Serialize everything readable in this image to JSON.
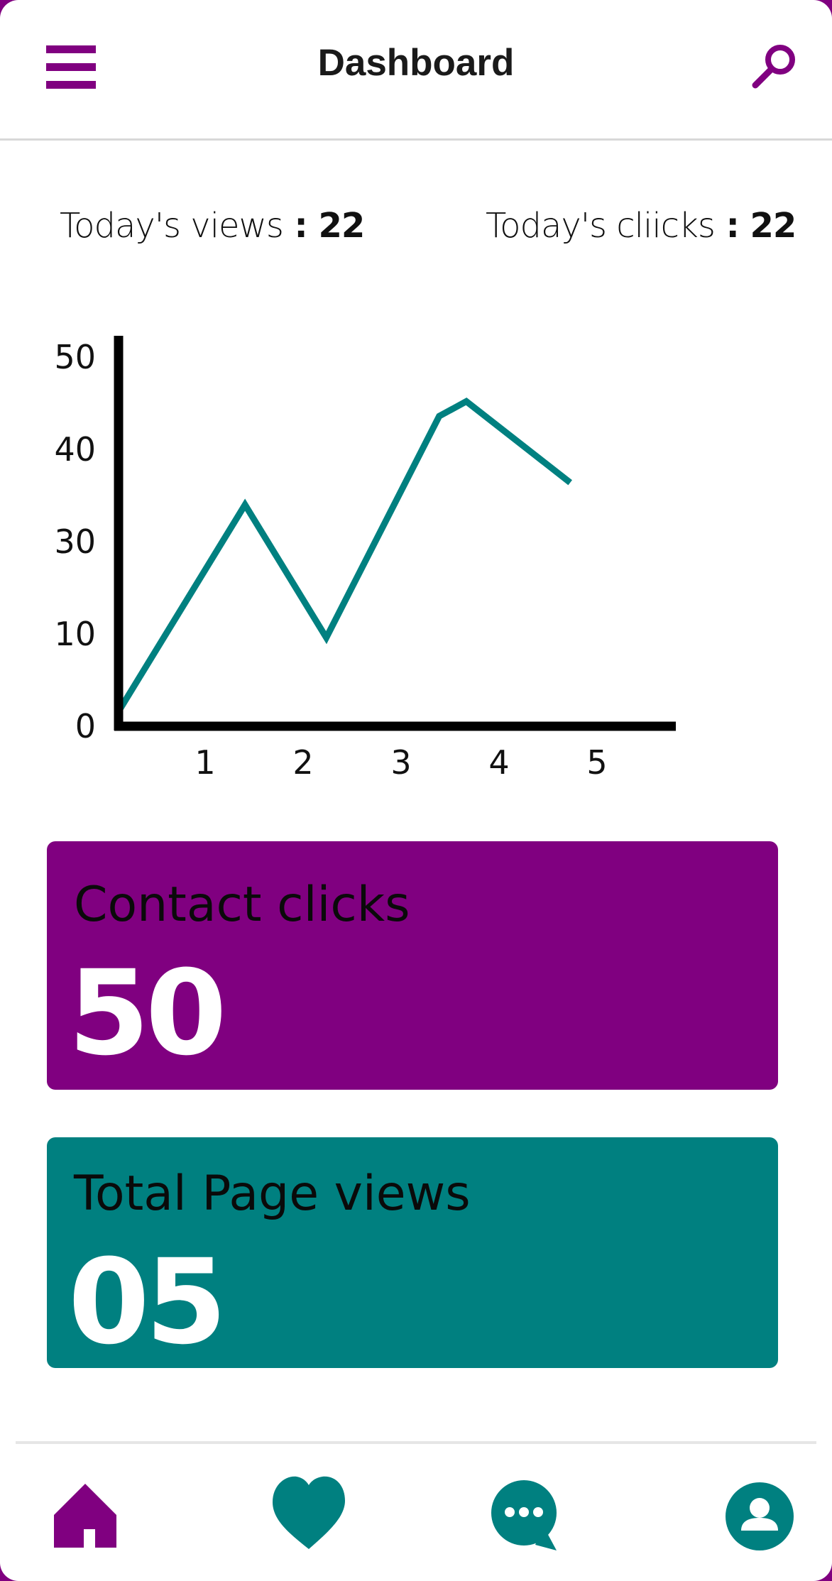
{
  "header": {
    "title": "Dashboard",
    "menu_icon": "hamburger-menu-icon",
    "search_icon": "search-icon"
  },
  "stats": {
    "views_label": "Today's views",
    "views_sep": " : ",
    "views_value": "22",
    "clicks_label": "Today's cliicks",
    "clicks_sep": " : ",
    "clicks_value": "22"
  },
  "chart_data": {
    "type": "line",
    "x": [
      0,
      1.4,
      2.3,
      3.55,
      3.85,
      5
    ],
    "y": [
      2,
      30,
      12,
      42,
      44,
      33
    ],
    "xticks": [
      "1",
      "2",
      "3",
      "4",
      "5"
    ],
    "xtick_values": [
      1,
      2,
      3,
      4,
      5
    ],
    "yticks": [
      "0",
      "10",
      "30",
      "40",
      "50"
    ],
    "xlim": [
      0,
      5.8
    ],
    "ylim": [
      0,
      50
    ],
    "title": "",
    "xlabel": "",
    "ylabel": "",
    "grid": false,
    "line_color": "#008080",
    "axis_color": "#000000"
  },
  "cards": {
    "contact": {
      "title": "Contact clicks",
      "value": "50",
      "color": "#800080"
    },
    "views": {
      "title": "Total Page views",
      "value": "05",
      "color": "#008080"
    }
  },
  "nav": {
    "items": [
      {
        "icon": "home-icon",
        "color": "#800080"
      },
      {
        "icon": "heart-icon",
        "color": "#008080"
      },
      {
        "icon": "chat-bubble-icon",
        "color": "#008080"
      },
      {
        "icon": "profile-icon",
        "color": "#008080"
      }
    ]
  }
}
